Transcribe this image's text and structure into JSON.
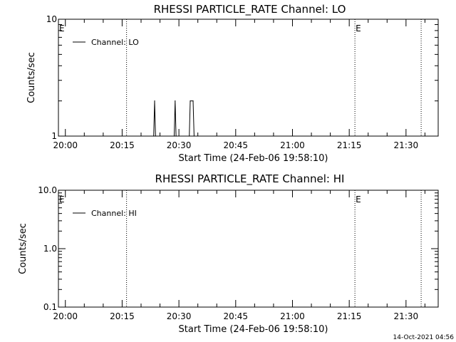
{
  "footer_timestamp": "14-Oct-2021 04:56",
  "chart_data": [
    {
      "type": "line",
      "title": "RHESSI PARTICLE_RATE Channel: LO",
      "xlabel": "Start Time (24-Feb-06 19:58:10)",
      "ylabel": "Counts/sec",
      "yscale": "log",
      "ylim": [
        1,
        10
      ],
      "y_tick_labels": [
        "1",
        "10"
      ],
      "xlim": [
        "19:58:10",
        "21:38:30"
      ],
      "x_tick_labels": [
        "20:00",
        "20:15",
        "20:30",
        "20:45",
        "21:00",
        "21:15",
        "21:30"
      ],
      "legend": {
        "placement": "top-left",
        "entries": [
          "Channel: LO"
        ]
      },
      "event_lines": [
        {
          "time": "20:16:10",
          "label": ""
        },
        {
          "time": "21:16:30",
          "label": "E"
        },
        {
          "time": "21:34:00",
          "label": ""
        }
      ],
      "start_marker": "E",
      "series": [
        {
          "name": "Channel: LO",
          "points": [
            {
              "t": "20:23:20",
              "v": 1
            },
            {
              "t": "20:23:35",
              "v": 2
            },
            {
              "t": "20:23:50",
              "v": 1
            },
            {
              "t": "20:28:45",
              "v": 1
            },
            {
              "t": "20:29:00",
              "v": 2
            },
            {
              "t": "20:29:15",
              "v": 1
            },
            {
              "t": "20:32:45",
              "v": 1
            },
            {
              "t": "20:33:00",
              "v": 2
            },
            {
              "t": "20:33:45",
              "v": 2
            },
            {
              "t": "20:34:00",
              "v": 1
            }
          ]
        }
      ]
    },
    {
      "type": "line",
      "title": "RHESSI PARTICLE_RATE Channel: HI",
      "xlabel": "Start Time (24-Feb-06 19:58:10)",
      "ylabel": "Counts/sec",
      "yscale": "log",
      "ylim": [
        0.1,
        10
      ],
      "y_tick_labels": [
        "0.1",
        "1.0",
        "10.0"
      ],
      "xlim": [
        "19:58:10",
        "21:38:30"
      ],
      "x_tick_labels": [
        "20:00",
        "20:15",
        "20:30",
        "20:45",
        "21:00",
        "21:15",
        "21:30"
      ],
      "legend": {
        "placement": "top-left",
        "entries": [
          "Channel: HI"
        ]
      },
      "event_lines": [
        {
          "time": "20:16:10",
          "label": ""
        },
        {
          "time": "21:16:30",
          "label": "E"
        },
        {
          "time": "21:34:00",
          "label": ""
        }
      ],
      "start_marker": "E",
      "series": [
        {
          "name": "Channel: HI",
          "points": []
        }
      ]
    }
  ]
}
